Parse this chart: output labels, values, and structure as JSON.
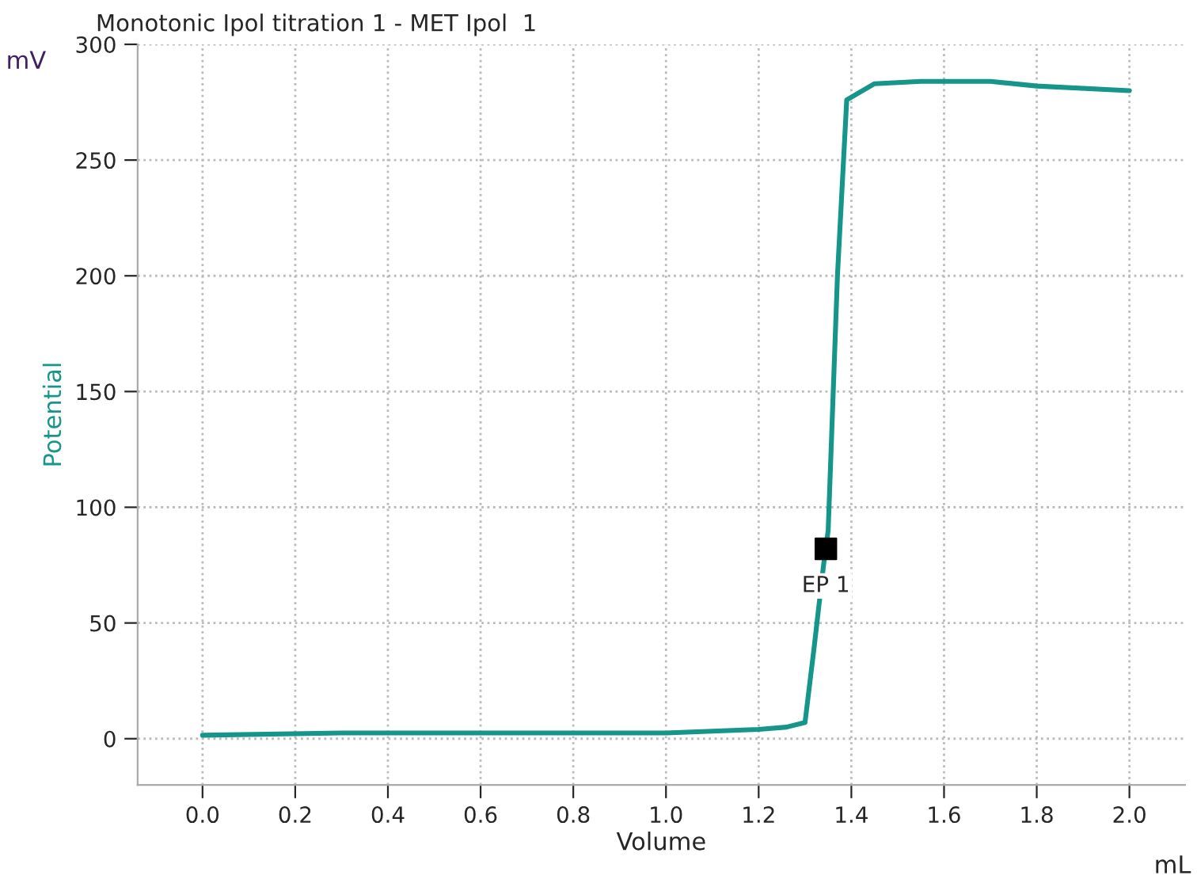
{
  "chart_data": {
    "type": "line",
    "title": "Monotonic Ipol titration 1 - MET Ipol  1",
    "xlabel": "Volume",
    "ylabel": "Potential",
    "series": [
      {
        "color": "#16968a",
        "x": [
          0.0,
          0.3,
          0.9,
          1.0,
          1.2,
          1.26,
          1.3,
          1.32,
          1.34,
          1.35,
          1.37,
          1.39,
          1.45,
          1.55,
          1.7,
          1.8,
          2.0
        ],
        "values": [
          1.5,
          2.5,
          2.5,
          2.5,
          4,
          5,
          7,
          40,
          75,
          90,
          200,
          276,
          283,
          284,
          284,
          282,
          280
        ],
        "marker": "none"
      },
      {
        "type": "scatter",
        "color": "#000000",
        "x": [
          1.345
        ],
        "values": [
          82
        ],
        "marker": "square"
      }
    ],
    "annotations": [
      {
        "text": "EP 1",
        "x": 1.345,
        "y": 82
      },
      "mV",
      "mL"
    ],
    "xlim": [
      -0.14,
      2.12
    ],
    "ylim": [
      -20,
      300
    ],
    "xticks": [
      {
        "value": 0.0,
        "label": "0.0"
      },
      0.2,
      0.4,
      0.6,
      0.8,
      {
        "value": 1.0,
        "label": "1.0"
      },
      1.2,
      1.4,
      1.6,
      1.8,
      {
        "value": 2.0,
        "label": "2.0"
      }
    ],
    "yticks": [
      0,
      50,
      100,
      150,
      200,
      250,
      300
    ],
    "grid": true,
    "legend": false
  }
}
